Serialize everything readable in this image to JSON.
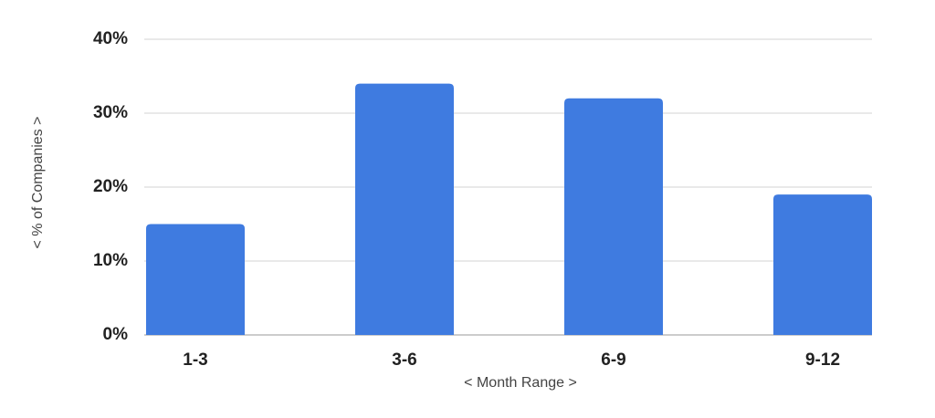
{
  "chart_data": {
    "type": "bar",
    "x_label": "< Month Range >",
    "y_label": "< % of Companies >",
    "categories": [
      "1-3",
      "3-6",
      "6-9",
      "9-12"
    ],
    "values": [
      15,
      34,
      32,
      19
    ],
    "color": "#3f7be0",
    "ylim": [
      0,
      40
    ],
    "yticks": [
      {
        "value": 0,
        "label": "0%"
      },
      {
        "value": 10,
        "label": "10%"
      },
      {
        "value": 20,
        "label": "20%"
      },
      {
        "value": 30,
        "label": "30%"
      },
      {
        "value": 40,
        "label": "40%"
      }
    ],
    "grid": true
  }
}
